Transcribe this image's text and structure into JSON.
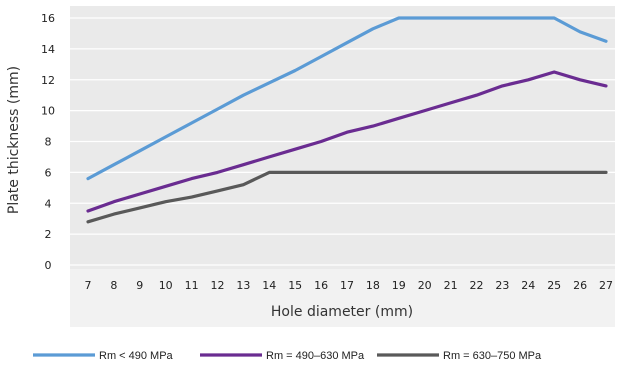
{
  "chart_data": {
    "type": "line",
    "xlabel": "Hole diameter (mm)",
    "ylabel": "Plate thickness (mm)",
    "x": [
      7,
      8,
      9,
      10,
      11,
      12,
      13,
      14,
      15,
      16,
      17,
      18,
      19,
      20,
      21,
      22,
      23,
      24,
      25,
      26,
      27
    ],
    "xlim": [
      6.5,
      27.5
    ],
    "ylim": [
      0,
      16
    ],
    "yticks": [
      0,
      2,
      4,
      6,
      8,
      10,
      12,
      14,
      16
    ],
    "grid": true,
    "legend_position": "bottom",
    "series": [
      {
        "name": "Rm < 490 MPa",
        "color": "#5b9bd5",
        "values": [
          5.6,
          6.5,
          7.4,
          8.3,
          9.2,
          10.1,
          11.0,
          11.8,
          12.6,
          13.5,
          14.4,
          15.3,
          16.0,
          16.0,
          16.0,
          16.0,
          16.0,
          16.0,
          16.0,
          15.1,
          14.5
        ]
      },
      {
        "name": "Rm = 490–630 MPa",
        "color": "#6a2c91",
        "values": [
          3.5,
          4.1,
          4.6,
          5.1,
          5.6,
          6.0,
          6.5,
          7.0,
          7.5,
          8.0,
          8.6,
          9.0,
          9.5,
          10.0,
          10.5,
          11.0,
          11.6,
          12.0,
          12.5,
          12.0,
          11.6
        ]
      },
      {
        "name": "Rm = 630–750 MPa",
        "color": "#595959",
        "values": [
          2.8,
          3.3,
          3.7,
          4.1,
          4.4,
          4.8,
          5.2,
          6.0,
          6.0,
          6.0,
          6.0,
          6.0,
          6.0,
          6.0,
          6.0,
          6.0,
          6.0,
          6.0,
          6.0,
          6.0,
          6.0
        ]
      }
    ]
  }
}
